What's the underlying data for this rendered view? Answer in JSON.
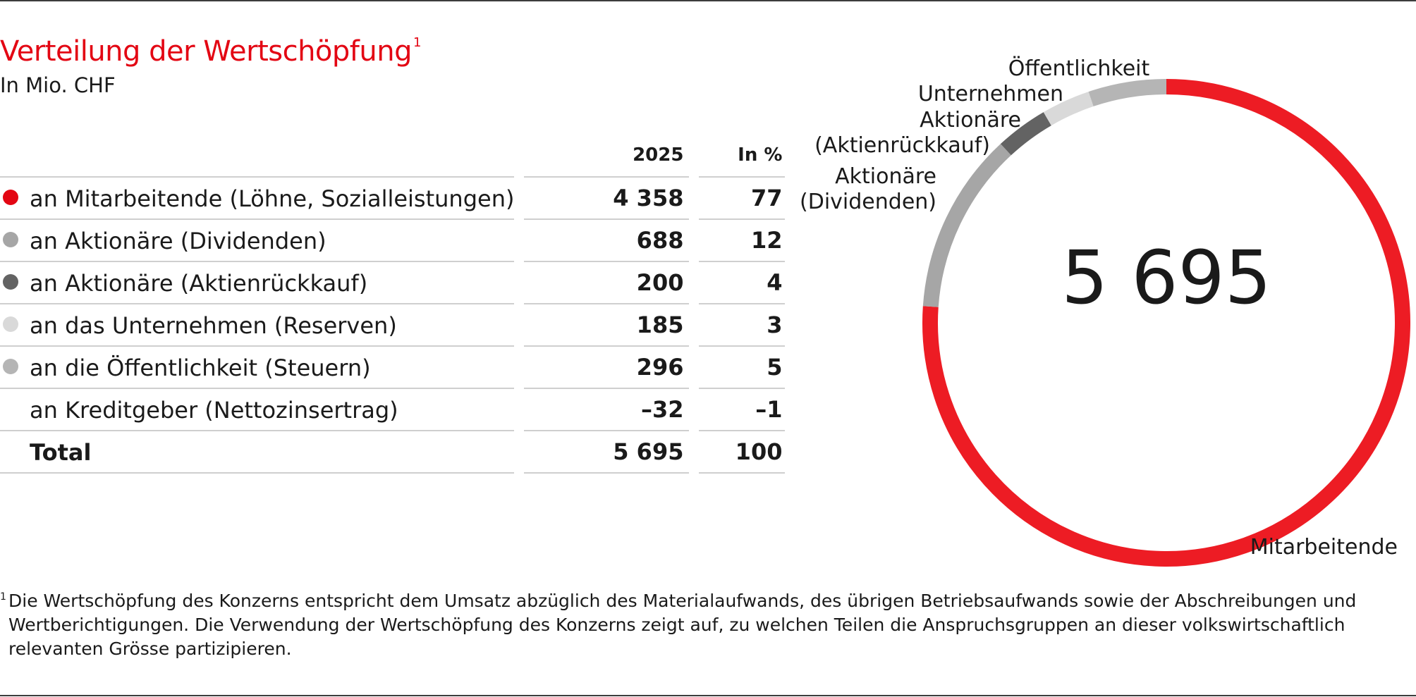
{
  "title": "Verteilung der Wertschöpfung",
  "title_footnote_mark": "1",
  "subtitle": "In Mio. CHF",
  "table": {
    "col_year": "2025",
    "col_pct": "In %",
    "rows": [
      {
        "label": "an Mitarbeitende (Löhne, Sozialleistungen)",
        "value": "4 358",
        "pct": "77",
        "color": "#e30613"
      },
      {
        "label": "an Aktionäre (Dividenden)",
        "value": "688",
        "pct": "12",
        "color": "#a6a6a6"
      },
      {
        "label": "an Aktionäre (Aktienrückkauf)",
        "value": "200",
        "pct": "4",
        "color": "#636363"
      },
      {
        "label": "an das Unternehmen (Reserven)",
        "value": "185",
        "pct": "3",
        "color": "#d9d9d9"
      },
      {
        "label": "an die Öffentlichkeit (Steuern)",
        "value": "296",
        "pct": "5",
        "color": "#b5b5b5"
      },
      {
        "label": "an Kreditgeber (Nettozinsertrag)",
        "value": "–32",
        "pct": "–1",
        "color": ""
      },
      {
        "label": "Total",
        "value": "5 695",
        "pct": "100",
        "color": ""
      }
    ]
  },
  "chart_data": {
    "type": "pie",
    "title": "Verteilung der Wertschöpfung",
    "center_label": "5 695",
    "unit": "Mio. CHF",
    "slices": [
      {
        "name": "Mitarbeitende",
        "value": 4358,
        "color": "#ed1c24"
      },
      {
        "name": "Aktionäre (Dividenden)",
        "value": 688,
        "color": "#a6a6a6"
      },
      {
        "name": "Aktionäre (Aktienrückkauf)",
        "value": 200,
        "color": "#636363"
      },
      {
        "name": "Unternehmen",
        "value": 185,
        "color": "#d9d9d9"
      },
      {
        "name": "Öffentlichkeit",
        "value": 296,
        "color": "#b5b5b5"
      }
    ],
    "labels": {
      "mitarbeitende": "Mitarbeitende",
      "dividenden_1": "Aktionäre",
      "dividenden_2": "(Dividenden)",
      "aktienrueckkauf_1": "Aktionäre",
      "aktienrueckkauf_2": "(Aktienrückkauf)",
      "unternehmen": "Unternehmen",
      "oeffentlichkeit": "Öffentlichkeit"
    }
  },
  "footnote": {
    "mark": "1",
    "text": "Die Wertschöpfung des Konzerns entspricht dem Umsatz abzüglich des Materialaufwands, des übrigen Betriebsaufwands sowie der Abschreibungen und Wertberichtigungen. Die Verwendung der Wertschöpfung des Konzerns zeigt auf, zu welchen Teilen die Anspruchsgruppen an dieser volkswirtschaftlich relevanten Grösse partizipieren."
  }
}
